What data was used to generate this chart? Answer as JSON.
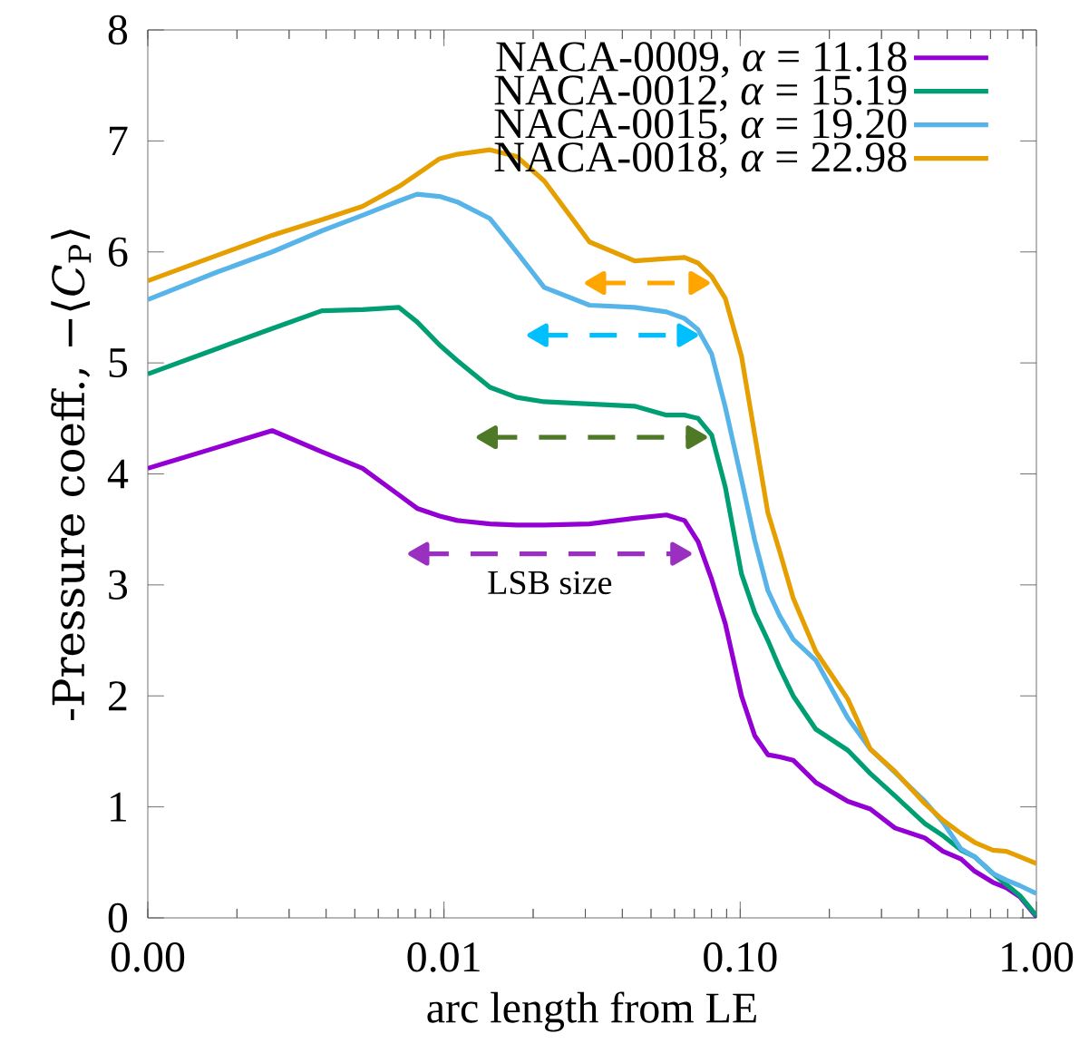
{
  "chart_data": {
    "type": "line",
    "xlabel": "arc length from LE",
    "ylabel": "-Pressure coeff., −⟨*C*$_{P}$⟩",
    "log": "x",
    "legend": "top right",
    "xlim": [
      0.001,
      1
    ],
    "xticks": [
      {
        "value": 0.001,
        "label": "0.00"
      },
      {
        "value": 0.01,
        "label": "0.01"
      },
      {
        "value": 0.1,
        "label": "0.10"
      },
      {
        "value": 1,
        "label": "1.00"
      }
    ],
    "ylim": [
      0,
      8
    ],
    "yticks": [
      0,
      1,
      2,
      3,
      4,
      5,
      6,
      7,
      8
    ],
    "x": [
      0.001,
      0.00172,
      0.00263,
      0.00387,
      0.00531,
      0.00705,
      0.00811,
      0.00967,
      0.0111,
      0.0143,
      0.0176,
      0.0218,
      0.031,
      0.044,
      0.0564,
      0.0649,
      0.0721,
      0.0801,
      0.0891,
      0.101,
      0.112,
      0.124,
      0.136,
      0.151,
      0.18,
      0.231,
      0.275,
      0.333,
      0.42,
      0.484,
      0.557,
      0.619,
      0.713,
      0.792,
      0.88,
      1.0
    ],
    "series": [
      {
        "name": "NACA-0009, *α* = 11.18",
        "color": "#9400d3",
        "values": [
          4.05,
          4.24,
          4.39,
          4.2,
          4.05,
          3.81,
          3.69,
          3.62,
          3.58,
          3.55,
          3.54,
          3.54,
          3.55,
          3.6,
          3.63,
          3.58,
          3.39,
          3.05,
          2.65,
          2.0,
          1.64,
          1.47,
          1.45,
          1.42,
          1.22,
          1.05,
          0.98,
          0.81,
          0.72,
          0.6,
          0.53,
          0.42,
          0.32,
          0.27,
          0.19,
          0.01
        ]
      },
      {
        "name": "NACA-0012, *α* = 15.19",
        "color": "#009e73",
        "values": [
          4.9,
          5.13,
          5.31,
          5.47,
          5.48,
          5.5,
          5.37,
          5.16,
          5.02,
          4.78,
          4.69,
          4.65,
          4.63,
          4.61,
          4.53,
          4.53,
          4.5,
          4.35,
          3.88,
          3.1,
          2.75,
          2.5,
          2.25,
          2.0,
          1.7,
          1.51,
          1.3,
          1.1,
          0.85,
          0.74,
          0.61,
          0.55,
          0.4,
          0.3,
          0.2,
          0.02
        ]
      },
      {
        "name": "NACA-0015, *α* = 19.20",
        "color": "#56b4e9",
        "values": [
          5.57,
          5.82,
          6.0,
          6.19,
          6.33,
          6.46,
          6.52,
          6.5,
          6.45,
          6.3,
          6.0,
          5.68,
          5.52,
          5.5,
          5.46,
          5.4,
          5.3,
          5.08,
          4.6,
          3.95,
          3.4,
          2.95,
          2.72,
          2.51,
          2.32,
          1.8,
          1.52,
          1.31,
          1.05,
          0.86,
          0.62,
          0.55,
          0.4,
          0.34,
          0.29,
          0.22
        ]
      },
      {
        "name": "NACA-0018, *α* = 22.98",
        "color": "#e69f00",
        "values": [
          5.74,
          5.97,
          6.15,
          6.29,
          6.41,
          6.59,
          6.7,
          6.84,
          6.88,
          6.92,
          6.86,
          6.64,
          6.09,
          5.92,
          5.94,
          5.95,
          5.9,
          5.78,
          5.58,
          5.06,
          4.35,
          3.65,
          3.3,
          2.88,
          2.4,
          1.97,
          1.52,
          1.32,
          1.03,
          0.88,
          0.76,
          0.68,
          0.61,
          0.6,
          0.55,
          0.49
        ]
      },
      {
        "color": "#9a30c0",
        "line_style": "dashed",
        "marker": "triangle",
        "x": [
          0.0084,
          0.0617
        ],
        "values": [
          3.28,
          3.28
        ]
      },
      {
        "color": "#4e7a27",
        "line_style": "dashed",
        "marker": "triangle",
        "x": [
          0.0143,
          0.0696
        ],
        "values": [
          4.33,
          4.33
        ]
      },
      {
        "color": "#00bfff",
        "line_style": "dashed",
        "marker": "triangle",
        "x": [
          0.0212,
          0.0649
        ],
        "values": [
          5.25,
          5.25
        ]
      },
      {
        "color": "#ffa500",
        "line_style": "dashed",
        "marker": "triangle",
        "x": [
          0.0332,
          0.0711
        ],
        "values": [
          5.72,
          5.72
        ]
      }
    ],
    "annotations": [
      "LSB size"
    ]
  }
}
